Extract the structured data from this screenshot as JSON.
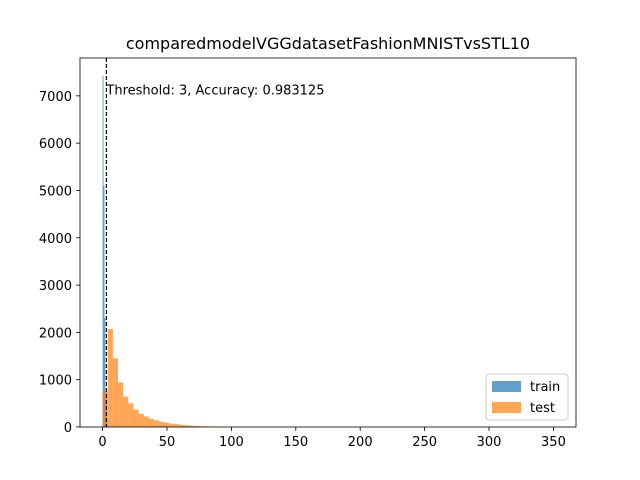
{
  "chart_data": {
    "type": "histogram",
    "title": "comparedmodelVGGdatasetFashionMNISTvsSTL10",
    "xlabel": "",
    "ylabel": "",
    "xlim": [
      -17.5,
      367.5
    ],
    "ylim": [
      0,
      7800
    ],
    "xticks": [
      0,
      50,
      100,
      150,
      200,
      250,
      300,
      350
    ],
    "yticks": [
      0,
      1000,
      2000,
      3000,
      4000,
      5000,
      6000,
      7000
    ],
    "grid": false,
    "legend_position": "lower-right",
    "threshold_line": {
      "x": 3,
      "style": "dashed"
    },
    "annotation": {
      "text": "Threshold: 3, Accuracy: 0.983125",
      "x": 3,
      "y": 7130
    },
    "series": [
      {
        "name": "train",
        "color": "#1f77b4",
        "opacity": 0.7,
        "bins": [
          {
            "x0": 0.0,
            "x1": 0.75,
            "count": 7430
          },
          {
            "x0": 0.75,
            "x1": 1.5,
            "count": 5100
          },
          {
            "x0": 1.5,
            "x1": 2.25,
            "count": 2300
          },
          {
            "x0": 2.25,
            "x1": 3.0,
            "count": 600
          },
          {
            "x0": 3.0,
            "x1": 3.75,
            "count": 120
          }
        ]
      },
      {
        "name": "test",
        "color": "#ff7f0e",
        "opacity": 0.7,
        "bins": [
          {
            "x0": 0,
            "x1": 4,
            "count": 740
          },
          {
            "x0": 4,
            "x1": 8,
            "count": 2070
          },
          {
            "x0": 8,
            "x1": 12,
            "count": 1450
          },
          {
            "x0": 12,
            "x1": 16,
            "count": 940
          },
          {
            "x0": 16,
            "x1": 20,
            "count": 640
          },
          {
            "x0": 20,
            "x1": 24,
            "count": 500
          },
          {
            "x0": 24,
            "x1": 28,
            "count": 370
          },
          {
            "x0": 28,
            "x1": 32,
            "count": 280
          },
          {
            "x0": 32,
            "x1": 36,
            "count": 220
          },
          {
            "x0": 36,
            "x1": 40,
            "count": 170
          },
          {
            "x0": 40,
            "x1": 44,
            "count": 140
          },
          {
            "x0": 44,
            "x1": 48,
            "count": 110
          },
          {
            "x0": 48,
            "x1": 52,
            "count": 90
          },
          {
            "x0": 52,
            "x1": 56,
            "count": 70
          },
          {
            "x0": 56,
            "x1": 60,
            "count": 60
          },
          {
            "x0": 60,
            "x1": 64,
            "count": 45
          },
          {
            "x0": 64,
            "x1": 68,
            "count": 35
          },
          {
            "x0": 68,
            "x1": 72,
            "count": 28
          },
          {
            "x0": 72,
            "x1": 76,
            "count": 22
          },
          {
            "x0": 76,
            "x1": 80,
            "count": 16
          },
          {
            "x0": 80,
            "x1": 84,
            "count": 12
          },
          {
            "x0": 84,
            "x1": 88,
            "count": 8
          },
          {
            "x0": 88,
            "x1": 92,
            "count": 5
          },
          {
            "x0": 92,
            "x1": 96,
            "count": 3
          }
        ]
      }
    ]
  }
}
